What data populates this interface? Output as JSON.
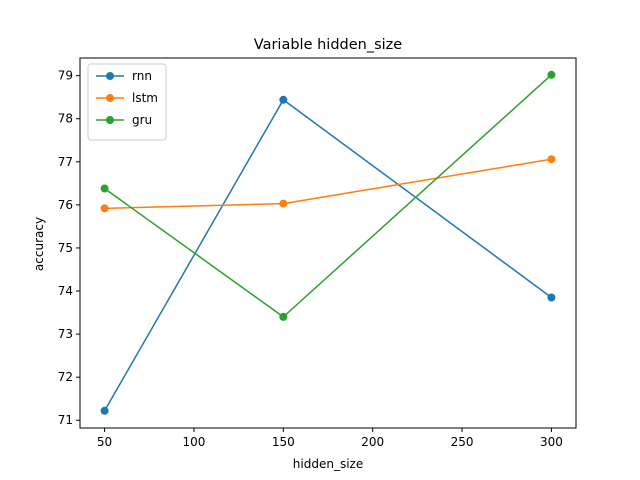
{
  "chart_data": {
    "type": "line",
    "title": "Variable hidden_size",
    "xlabel": "hidden_size",
    "ylabel": "accuracy",
    "x": [
      50,
      150,
      300
    ],
    "xlim": [
      36.25,
      313.75
    ],
    "ylim": [
      70.82,
      79.41
    ],
    "xticks": [
      50,
      100,
      150,
      200,
      250,
      300
    ],
    "yticks": [
      71,
      72,
      73,
      74,
      75,
      76,
      77,
      78,
      79
    ],
    "grid": false,
    "legend_position": "top-left",
    "series": [
      {
        "name": "rnn",
        "color": "#1f77b4",
        "values": [
          71.22,
          78.44,
          73.85
        ]
      },
      {
        "name": "lstm",
        "color": "#ff7f0e",
        "values": [
          75.92,
          76.03,
          77.06
        ]
      },
      {
        "name": "gru",
        "color": "#2ca02c",
        "values": [
          76.38,
          73.4,
          79.02
        ]
      }
    ]
  }
}
